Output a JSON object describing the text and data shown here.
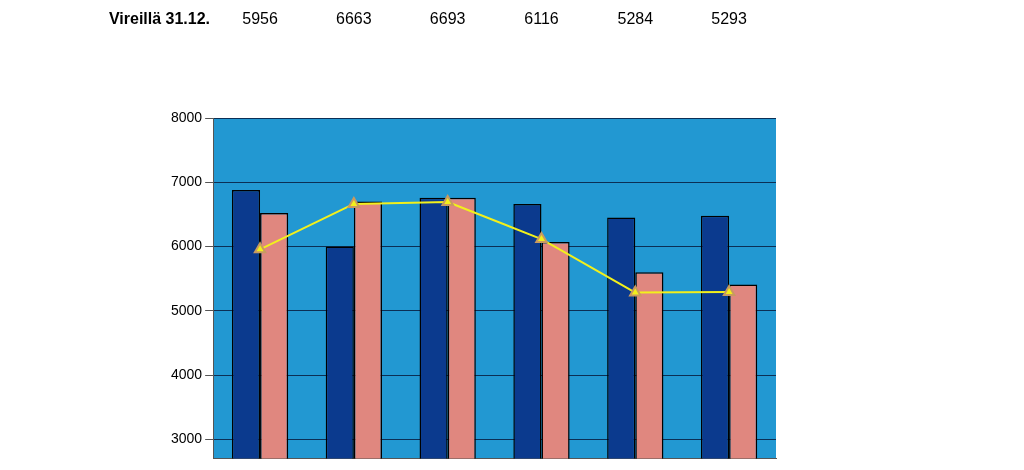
{
  "chart_data": {
    "type": "bar",
    "categories": [
      null,
      null,
      null,
      null,
      null,
      null
    ],
    "series": [
      {
        "color": "#0b3a8e",
        "values": [
          6880,
          6000,
          6760,
          6660,
          6450,
          6480
        ]
      },
      {
        "color": "#e0877f",
        "values": [
          6520,
          6700,
          6760,
          6070,
          5600,
          5410
        ]
      },
      {
        "type": "line",
        "name": "Vireillä 31.12.",
        "color": "#f2f01c",
        "values": [
          5956,
          6663,
          6693,
          6116,
          5284,
          5293
        ],
        "value_labels": [
          "5956",
          "6663",
          "6693",
          "6116",
          "5284",
          "5293"
        ]
      }
    ],
    "ylim": [
      2700,
      8000
    ],
    "yticks": [
      3000,
      4000,
      5000,
      6000,
      7000,
      8000
    ],
    "grid": "y",
    "legend": false,
    "tick_labels": "y",
    "marker": "triangle",
    "line_style": "solid"
  }
}
